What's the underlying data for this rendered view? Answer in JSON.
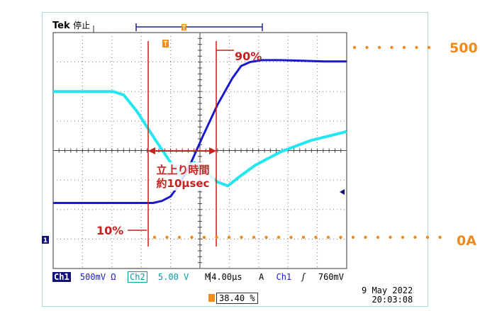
{
  "header": {
    "brand": "Tek",
    "run_state": "停止"
  },
  "chart_data": {
    "type": "line",
    "title": "",
    "xlabel": "",
    "ylabel": "",
    "x_unit": "µs",
    "xlim": [
      -8,
      12
    ],
    "ylim": [
      -1,
      2.6
    ],
    "grid": true,
    "series": [
      {
        "channel": "Ch1",
        "color": "#1a1acc",
        "x": [
          -8,
          -1.2,
          -0.6,
          0,
          0.6,
          1.4,
          2.2,
          3.2,
          4.2,
          4.8,
          5.4,
          6.2,
          7.5,
          9,
          10.5,
          12
        ],
        "y": [
          0,
          0,
          0.03,
          0.1,
          0.28,
          0.62,
          1.02,
          1.5,
          1.9,
          2.09,
          2.15,
          2.18,
          2.18,
          2.17,
          2.16,
          2.16
        ]
      },
      {
        "channel": "Ch2",
        "color": "#22e6f0",
        "x": [
          -8,
          -3.9,
          -3.2,
          -2.3,
          -1.0,
          0,
          0.8,
          1.6,
          2.4,
          3.2,
          3.9,
          4.8,
          5.8,
          7.5,
          9.5,
          12
        ],
        "y": [
          1.7,
          1.7,
          1.65,
          1.4,
          0.95,
          0.62,
          0.38,
          0.62,
          0.48,
          0.32,
          0.26,
          0.42,
          0.58,
          0.78,
          0.95,
          1.09
        ]
      }
    ],
    "annotations": {
      "label_90": "90%",
      "label_10": "10%",
      "rise_time_line1": "立上り時間",
      "rise_time_line2": "約10µsec",
      "label_500": "500",
      "label_0a": "0A"
    }
  },
  "status_bar": {
    "ch1_name": "Ch1",
    "ch1_scale": "500mV Ω",
    "ch2_name": "Ch2",
    "ch2_scale": "5.00 V",
    "timebase_label": "M",
    "timebase": "4.00µs",
    "trigger_mode": "A",
    "trigger_source": "Ch1",
    "trigger_slope": "ʃ",
    "trigger_level": "760mV"
  },
  "timestamp": {
    "date": "9 May 2022",
    "time": "20:03:08"
  },
  "trigger_position": "38.40 %",
  "channel_marker": "1",
  "colors": {
    "ch1": "#1a1acc",
    "ch2": "#22e6f0",
    "cursor": "#c8201f",
    "marker": "#f08a1c",
    "grid": "#6c6c6c"
  }
}
